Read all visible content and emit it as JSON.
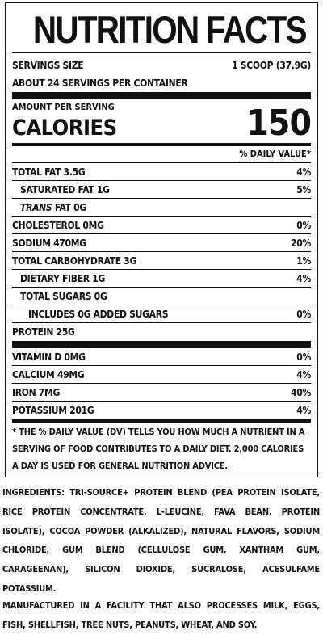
{
  "title": "NUTRITION FACTS",
  "servings": {
    "size_label": "SERVINGS SIZE",
    "size_value": "1 SCOOP (37.9G)",
    "per_container": "ABOUT 24 SERVINGS PER CONTAINER"
  },
  "calories": {
    "amount_label": "AMOUNT PER SERVING",
    "label": "CALORIES",
    "value": "150"
  },
  "dv_header": "% DAILY VALUE*",
  "nutrients": [
    {
      "name": "TOTAL FAT 3.5G",
      "dv": "4%"
    },
    {
      "name": "SATURATED FAT 1G",
      "dv": "5%"
    },
    {
      "name_italic": "TRANS",
      "name": " FAT 0G",
      "dv": ""
    },
    {
      "name": "CHOLESTEROL 0MG",
      "dv": "0%"
    },
    {
      "name": "SODIUM 470MG",
      "dv": "20%"
    },
    {
      "name": "TOTAL CARBOHYDRATE 3G",
      "dv": "1%"
    },
    {
      "name": "DIETARY FIBER 1G",
      "dv": "4%"
    },
    {
      "name": "TOTAL SUGARS 0G",
      "dv": ""
    },
    {
      "name": "INCLUDES 0G ADDED SUGARS",
      "dv": "0%"
    },
    {
      "name": "PROTEIN 25G",
      "dv": ""
    }
  ],
  "vitamins": [
    {
      "name": "VITAMIN D 0MG",
      "dv": "0%"
    },
    {
      "name": "CALCIUM 49MG",
      "dv": "4%"
    },
    {
      "name": "IRON 7MG",
      "dv": "40%"
    },
    {
      "name": "POTASSIUM 201G",
      "dv": "4%"
    }
  ],
  "footnote": "* THE % DAILY VALUE (DV) TELLS YOU HOW MUCH A NUTRIENT IN A SERVING OF FOOD CONTRIBUTES TO A DAILY DIET. 2,000 CALORIES A DAY IS USED FOR GENERAL NUTRITION ADVICE.",
  "ingredients": "INGREDIENTS: TRI-SOURCE+ PROTEIN BLEND (PEA PROTEIN ISOLATE, RICE PROTEIN CONCENTRATE, L-LEUCINE, FAVA BEAN, PROTEIN ISOLATE), COCOA POWDER (ALKALIZED), NATURAL FLAVORS, SODIUM CHLORIDE, GUM BLEND (CELLULOSE GUM, XANTHAM GUM, CARAGEENAN), SILICON DIOXIDE, SUCRALOSE, ACESULFAME POTASSIUM.",
  "allergen": "MANUFACTURED IN A FACILITY THAT ALSO PROCESSES MILK, EGGS, FISH, SHELLFISH, TREE NUTS, PEANUTS, WHEAT, AND SOY."
}
